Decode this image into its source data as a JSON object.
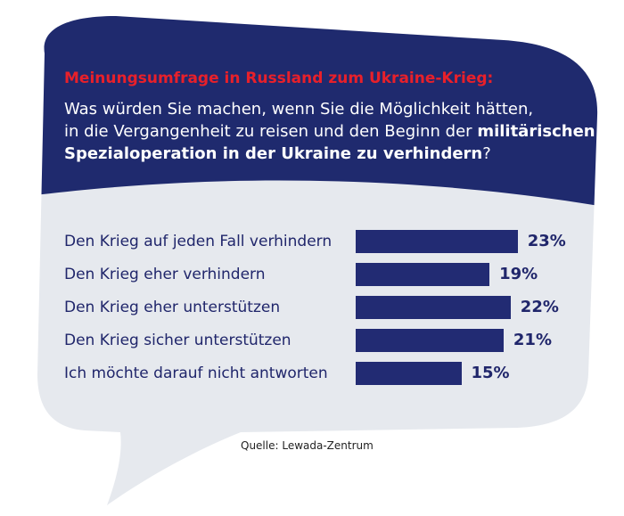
{
  "colors": {
    "header_bg": "#1f2a6e",
    "body_bg": "#e6e9ee",
    "bar": "#222b73",
    "title": "#e8202a",
    "text": "#20266b"
  },
  "header": {
    "title": "Meinungsumfrage in Russland zum Ukraine-Krieg:",
    "question_line1": "Was würden Sie machen, wenn Sie die Möglichkeit hätten,",
    "question_line2_plain": "in die Vergangenheit zu reisen und den Beginn der ",
    "question_line2_bold": "militärischen",
    "question_line3_bold": "Spezialoperation in der Ukraine zu verhindern",
    "question_line3_end": "?"
  },
  "chart_data": {
    "type": "bar",
    "orientation": "horizontal",
    "categories": [
      "Den Krieg auf jeden Fall verhindern",
      "Den Krieg eher verhindern",
      "Den Krieg eher unterstützen",
      "Den Krieg sicher unterstützen",
      "Ich möchte darauf nicht antworten"
    ],
    "values": [
      23,
      19,
      22,
      21,
      15
    ],
    "value_labels": [
      "23%",
      "19%",
      "22%",
      "21%",
      "15%"
    ],
    "unit": "%",
    "grid": false,
    "legend": "none"
  },
  "source": "Quelle: Lewada-Zentrum"
}
